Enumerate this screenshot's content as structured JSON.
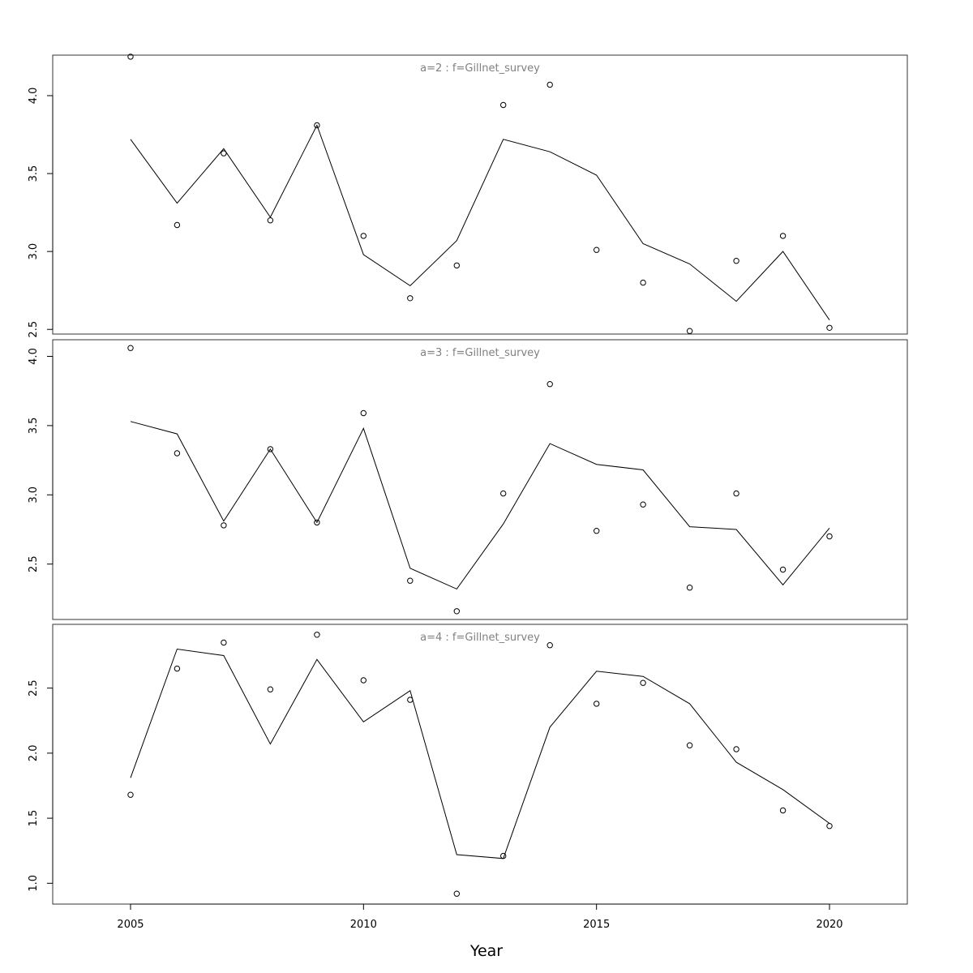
{
  "chart_data": {
    "type": "line",
    "xlabel": "Year",
    "x": [
      2005,
      2006,
      2007,
      2008,
      2009,
      2010,
      2011,
      2012,
      2013,
      2014,
      2015,
      2016,
      2017,
      2018,
      2019,
      2020
    ],
    "xticks": [
      2005,
      2010,
      2015,
      2020
    ],
    "xtick_labels": [
      "2005",
      "2010",
      "2015",
      "2020"
    ],
    "xlim": [
      2003.33,
      2021.67
    ],
    "grid": false,
    "panels": [
      {
        "title": "a=2  :  f=Gillnet_survey",
        "ylim": [
          2.47,
          4.26
        ],
        "yticks": [
          2.5,
          3.0,
          3.5,
          4.0
        ],
        "ytick_labels": [
          "2.5",
          "3.0",
          "3.5",
          "4.0"
        ],
        "series": [
          {
            "kind": "points",
            "values": [
              4.25,
              3.17,
              3.63,
              3.2,
              3.81,
              3.1,
              2.7,
              2.91,
              3.94,
              4.07,
              3.01,
              2.8,
              2.49,
              2.94,
              3.1,
              2.51
            ]
          },
          {
            "kind": "line",
            "values": [
              3.72,
              3.31,
              3.66,
              3.22,
              3.81,
              2.98,
              2.78,
              3.07,
              3.72,
              3.64,
              3.49,
              3.05,
              2.92,
              2.68,
              3.0,
              2.56
            ]
          }
        ]
      },
      {
        "title": "a=3  :  f=Gillnet_survey",
        "ylim": [
          2.1,
          4.12
        ],
        "yticks": [
          2.5,
          3.0,
          3.5,
          4.0
        ],
        "ytick_labels": [
          "2.5",
          "3.0",
          "3.5",
          "4.0"
        ],
        "series": [
          {
            "kind": "points",
            "values": [
              4.06,
              3.3,
              2.78,
              3.33,
              2.8,
              3.59,
              2.38,
              2.16,
              3.01,
              3.8,
              2.74,
              2.93,
              2.33,
              3.01,
              2.46,
              2.7
            ]
          },
          {
            "kind": "line",
            "values": [
              3.53,
              3.44,
              2.81,
              3.33,
              2.8,
              3.48,
              2.47,
              2.32,
              2.79,
              3.37,
              3.22,
              3.18,
              2.77,
              2.75,
              2.35,
              2.76
            ]
          }
        ]
      },
      {
        "title": "a=4  :  f=Gillnet_survey",
        "ylim": [
          0.84,
          2.99
        ],
        "yticks": [
          1.0,
          1.5,
          2.0,
          2.5
        ],
        "ytick_labels": [
          "1.0",
          "1.5",
          "2.0",
          "2.5"
        ],
        "series": [
          {
            "kind": "points",
            "values": [
              1.68,
              2.65,
              2.85,
              2.49,
              2.91,
              2.56,
              2.41,
              0.92,
              1.21,
              2.83,
              2.38,
              2.54,
              2.06,
              2.03,
              1.56,
              1.44
            ]
          },
          {
            "kind": "line",
            "values": [
              1.81,
              2.8,
              2.75,
              2.07,
              2.72,
              2.24,
              2.48,
              1.22,
              1.19,
              2.2,
              2.63,
              2.59,
              2.38,
              1.93,
              1.72,
              1.46
            ]
          }
        ]
      }
    ]
  }
}
